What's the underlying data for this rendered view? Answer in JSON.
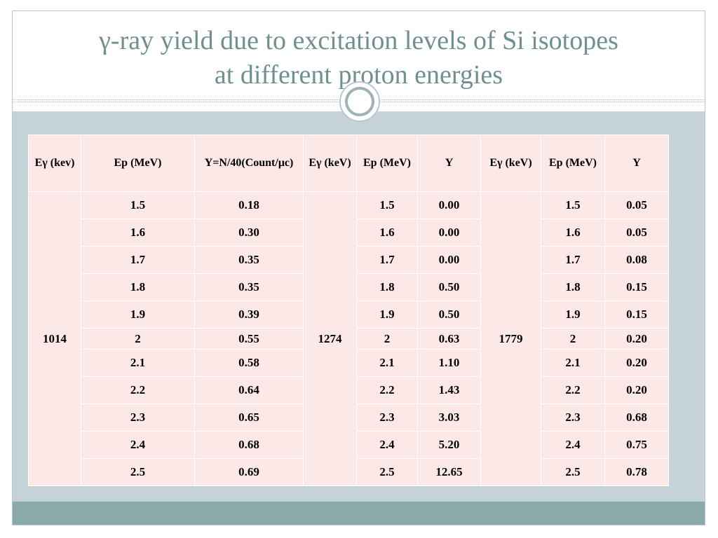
{
  "title_line1": "γ-ray  yield due to excitation levels of Si isotopes",
  "title_line2": "at different proton energies",
  "headers": {
    "h1": "Eγ (kev)",
    "h2": "Ep (MeV)",
    "h3": "Y=N/40(Count/μc)",
    "h4": "Eγ (keV)",
    "h5": "Ep (MeV)",
    "h6": "Y",
    "h7": "Eγ (keV)",
    "h8": "Ep (MeV)",
    "h9": "Y"
  },
  "energy_levels": [
    "1014",
    "1274",
    "1779"
  ],
  "rows": [
    {
      "ep1": "1.5",
      "y1": "0.18",
      "ep2": "1.5",
      "y2": "0.00",
      "ep3": "1.5",
      "y3": "0.05"
    },
    {
      "ep1": "1.6",
      "y1": "0.30",
      "ep2": "1.6",
      "y2": "0.00",
      "ep3": "1.6",
      "y3": "0.05"
    },
    {
      "ep1": "1.7",
      "y1": "0.35",
      "ep2": "1.7",
      "y2": "0.00",
      "ep3": "1.7",
      "y3": "0.08"
    },
    {
      "ep1": "1.8",
      "y1": "0.35",
      "ep2": "1.8",
      "y2": "0.50",
      "ep3": "1.8",
      "y3": "0.15"
    },
    {
      "ep1": "1.9",
      "y1": "0.39",
      "ep2": "1.9",
      "y2": "0.50",
      "ep3": "1.9",
      "y3": "0.15"
    },
    {
      "ep1": "2",
      "y1": "0.55",
      "ep2": "2",
      "y2": "0.63",
      "ep3": "2",
      "y3": "0.20"
    },
    {
      "ep1": "2.1",
      "y1": "0.58",
      "ep2": "2.1",
      "y2": "1.10",
      "ep3": "2.1",
      "y3": "0.20"
    },
    {
      "ep1": "2.2",
      "y1": "0.64",
      "ep2": "2.2",
      "y2": "1.43",
      "ep3": "2.2",
      "y3": "0.20"
    },
    {
      "ep1": "2.3",
      "y1": "0.65",
      "ep2": "2.3",
      "y2": "3.03",
      "ep3": "2.3",
      "y3": "0.68"
    },
    {
      "ep1": "2.4",
      "y1": "0.68",
      "ep2": "2.4",
      "y2": "5.20",
      "ep3": "2.4",
      "y3": "0.75"
    },
    {
      "ep1": "2.5",
      "y1": "0.69",
      "ep2": "2.5",
      "y2": "12.65",
      "ep3": "2.5",
      "y3": "0.78"
    }
  ],
  "colors": {
    "title": "#6f8f91",
    "panel": "#c5d3d8",
    "footer": "#8aa9aa",
    "table_fill": "#fbe8e7"
  }
}
